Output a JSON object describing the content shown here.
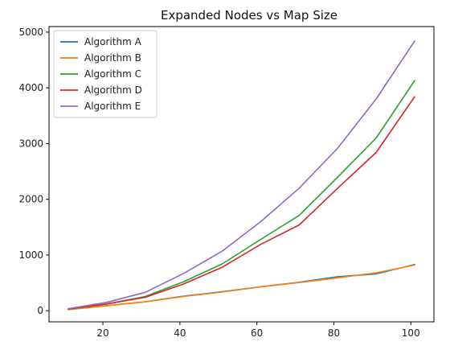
{
  "chart_data": {
    "type": "line",
    "title": "Expanded Nodes vs Map Size",
    "xlabel": "",
    "ylabel": "",
    "x": [
      11,
      21,
      31,
      41,
      51,
      61,
      71,
      81,
      91,
      101
    ],
    "xlim": [
      6,
      106
    ],
    "ylim": [
      -200,
      5100
    ],
    "xticks": [
      20,
      40,
      60,
      80,
      100
    ],
    "yticks": [
      0,
      1000,
      2000,
      3000,
      4000,
      5000
    ],
    "grid": false,
    "legend_position": "top-left",
    "series": [
      {
        "name": "Algorithm A",
        "color": "#1f77b4",
        "values": [
          20,
          90,
          160,
          260,
          340,
          430,
          510,
          610,
          660,
          830
        ]
      },
      {
        "name": "Algorithm B",
        "color": "#ff7f0e",
        "values": [
          20,
          90,
          160,
          255,
          335,
          430,
          505,
          590,
          680,
          820
        ]
      },
      {
        "name": "Algorithm C",
        "color": "#2ca02c",
        "values": [
          30,
          120,
          255,
          520,
          840,
          1280,
          1710,
          2400,
          3100,
          4130
        ]
      },
      {
        "name": "Algorithm D",
        "color": "#d62728",
        "values": [
          30,
          120,
          240,
          480,
          780,
          1190,
          1540,
          2200,
          2840,
          3840
        ]
      },
      {
        "name": "Algorithm E",
        "color": "#9467bd",
        "values": [
          35,
          150,
          330,
          670,
          1070,
          1600,
          2200,
          2920,
          3800,
          4840
        ]
      }
    ]
  }
}
